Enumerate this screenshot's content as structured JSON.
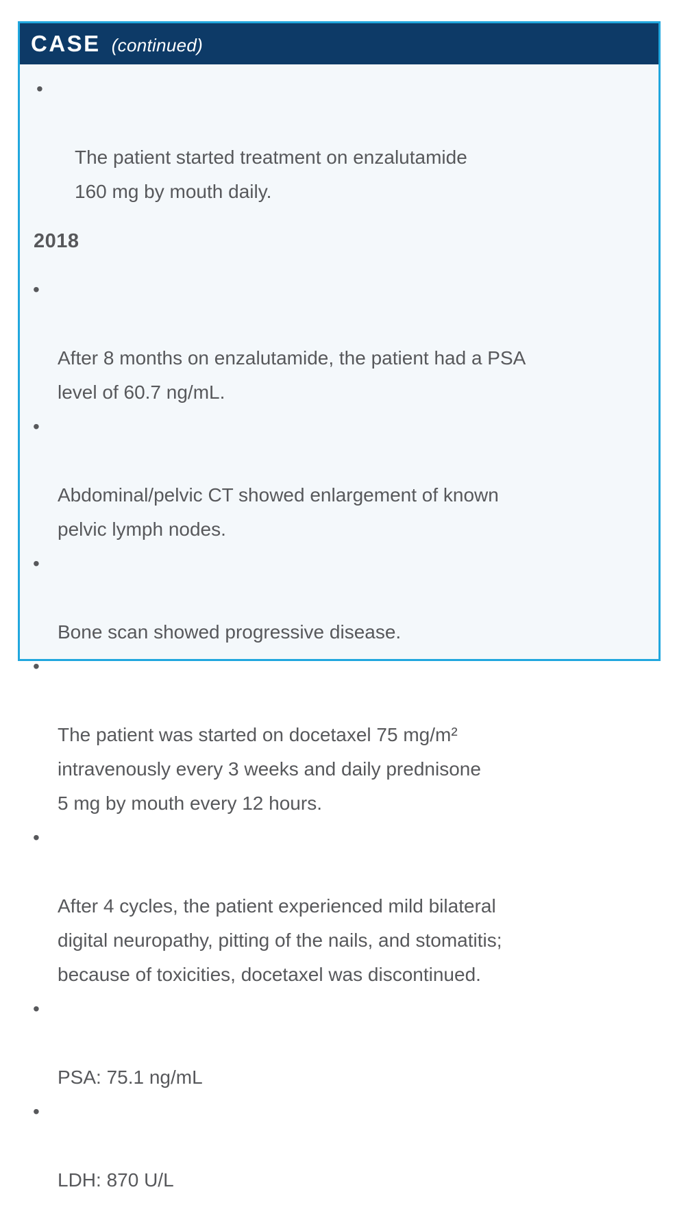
{
  "header": {
    "title": "CASE",
    "subtitle": "(continued)"
  },
  "body": {
    "intro_items": [
      "The patient started treatment on enzalutamide\n160 mg by mouth daily."
    ],
    "year_heading": "2018",
    "items": [
      "After 8 months on enzalutamide, the patient had a PSA\nlevel of 60.7 ng/mL.",
      "Abdominal/pelvic CT showed enlargement of known\npelvic lymph nodes.",
      "Bone scan showed progressive disease.",
      "The patient was started on docetaxel 75 mg/m²\nintravenously every 3 weeks and daily prednisone\n5 mg by mouth every 12 hours.",
      "After 4 cycles, the patient experienced mild bilateral\ndigital neuropathy, pitting of the nails, and stomatitis;\nbecause of toxicities, docetaxel was discontinued.",
      "PSA: 75.1 ng/mL",
      "LDH: 870 U/L"
    ],
    "bullet_glyph": "•"
  },
  "colors": {
    "header_bg": "#0d3a67",
    "border": "#21a7de",
    "body_bg": "#f4f8fb",
    "text": "#57585b"
  }
}
